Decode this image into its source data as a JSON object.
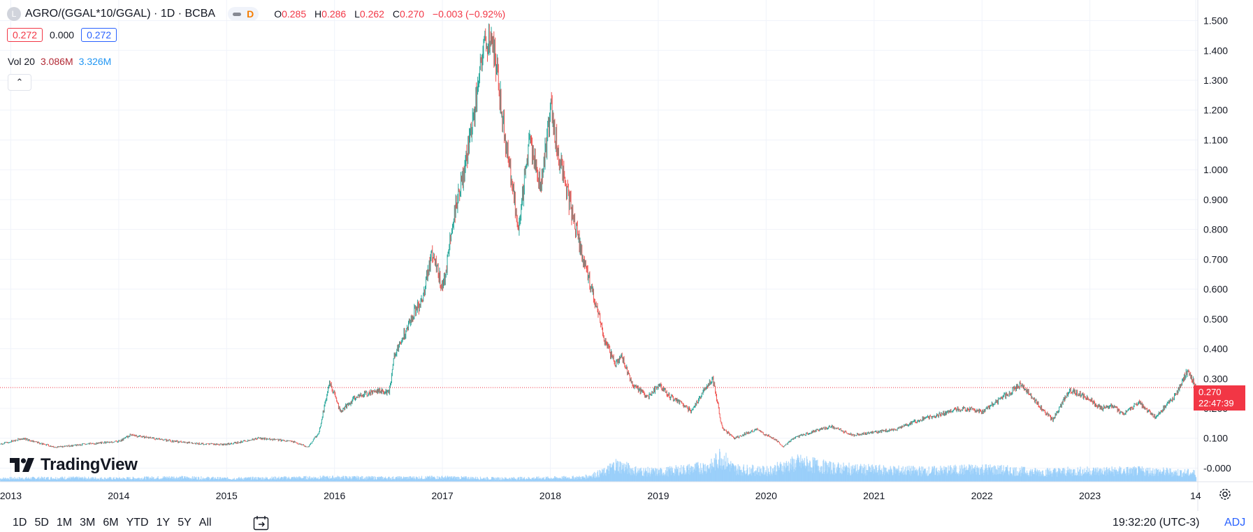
{
  "header": {
    "logo_letter": "L",
    "symbol": "AGRO/(GGAL*10/GGAL) · 1D · BCBA",
    "interval_badge": "D",
    "open_label": "O",
    "open": "0.285",
    "high_label": "H",
    "high": "0.286",
    "low_label": "L",
    "low": "0.262",
    "close_label": "C",
    "close": "0.270",
    "change": "−0.003 (−0.92%)"
  },
  "quote": {
    "sell": "0.272",
    "spread": "0.000",
    "buy": "0.272"
  },
  "volume": {
    "label": "Vol 20",
    "value_red": "3.086M",
    "value_blue": "3.326M"
  },
  "collapse_glyph": "⌃",
  "brand": "TradingView",
  "last_price": {
    "value": "0.270",
    "countdown": "22:47:39"
  },
  "timeframes": [
    "1D",
    "5D",
    "1M",
    "3M",
    "6M",
    "YTD",
    "1Y",
    "5Y",
    "All"
  ],
  "clock": "19:32:20 (UTC-3)",
  "adj": "ADJ",
  "colors": {
    "up": "#26a69a",
    "down": "#ef5350",
    "volume": "#90caf9",
    "grid": "#f0f3fa",
    "price_tag": "#f23645"
  },
  "chart_data": {
    "type": "line",
    "title": "AGRO/(GGAL*10/GGAL) · 1D · BCBA",
    "xlabel": "",
    "ylabel": "",
    "ylim": [
      -0.02,
      1.52
    ],
    "xlim": [
      2012.9,
      2024.0
    ],
    "y_ticks": [
      "1.500",
      "1.400",
      "1.300",
      "1.200",
      "1.100",
      "1.000",
      "0.900",
      "0.800",
      "0.700",
      "0.600",
      "0.500",
      "0.400",
      "0.300",
      "0.200",
      "0.100",
      "-0.000"
    ],
    "y_tick_values": [
      1.5,
      1.4,
      1.3,
      1.2,
      1.1,
      1.0,
      0.9,
      0.8,
      0.7,
      0.6,
      0.5,
      0.4,
      0.3,
      0.2,
      0.1,
      0.0
    ],
    "x_ticks": [
      "2013",
      "2014",
      "2015",
      "2016",
      "2017",
      "2018",
      "2019",
      "2020",
      "2021",
      "2022",
      "2023",
      "14"
    ],
    "x_tick_values": [
      2013,
      2014,
      2015,
      2016,
      2017,
      2018,
      2019,
      2020,
      2021,
      2022,
      2023,
      2023.98
    ],
    "last_value": 0.27,
    "series": [
      {
        "name": "AGRO/(GGAL*10/GGAL)",
        "x": [
          2012.9,
          2013.1,
          2013.4,
          2013.7,
          2014.0,
          2014.1,
          2014.5,
          2014.8,
          2015.0,
          2015.3,
          2015.6,
          2015.75,
          2015.85,
          2015.95,
          2016.05,
          2016.2,
          2016.4,
          2016.5,
          2016.55,
          2016.7,
          2016.8,
          2016.9,
          2017.0,
          2017.1,
          2017.2,
          2017.3,
          2017.35,
          2017.45,
          2017.55,
          2017.6,
          2017.7,
          2017.8,
          2017.9,
          2018.0,
          2018.1,
          2018.2,
          2018.3,
          2018.45,
          2018.5,
          2018.6,
          2018.65,
          2018.75,
          2018.9,
          2019.0,
          2019.1,
          2019.2,
          2019.3,
          2019.45,
          2019.5,
          2019.55,
          2019.57,
          2019.6,
          2019.7,
          2019.9,
          2020.1,
          2020.15,
          2020.25,
          2020.4,
          2020.6,
          2020.8,
          2021.0,
          2021.2,
          2021.4,
          2021.6,
          2021.8,
          2022.0,
          2022.2,
          2022.35,
          2022.55,
          2022.65,
          2022.8,
          2022.95,
          2023.1,
          2023.2,
          2023.3,
          2023.45,
          2023.6,
          2023.7,
          2023.8,
          2023.9,
          2023.98
        ],
        "values": [
          0.08,
          0.1,
          0.07,
          0.08,
          0.09,
          0.11,
          0.09,
          0.08,
          0.08,
          0.1,
          0.09,
          0.07,
          0.12,
          0.29,
          0.19,
          0.24,
          0.26,
          0.25,
          0.38,
          0.5,
          0.56,
          0.72,
          0.6,
          0.85,
          1.0,
          1.22,
          1.38,
          1.47,
          1.18,
          1.05,
          0.8,
          1.1,
          0.95,
          1.2,
          1.0,
          0.85,
          0.7,
          0.5,
          0.42,
          0.35,
          0.38,
          0.28,
          0.24,
          0.28,
          0.24,
          0.22,
          0.19,
          0.28,
          0.3,
          0.21,
          0.16,
          0.13,
          0.1,
          0.13,
          0.09,
          0.07,
          0.1,
          0.12,
          0.14,
          0.11,
          0.12,
          0.13,
          0.16,
          0.18,
          0.2,
          0.19,
          0.24,
          0.28,
          0.2,
          0.16,
          0.26,
          0.24,
          0.2,
          0.21,
          0.18,
          0.22,
          0.17,
          0.21,
          0.25,
          0.33,
          0.27
        ]
      }
    ],
    "volume_series": {
      "name": "Vol 20",
      "x": [
        2012.9,
        2013.5,
        2014.0,
        2014.5,
        2015.0,
        2015.5,
        2016.0,
        2016.5,
        2017.0,
        2017.5,
        2018.0,
        2018.3,
        2018.5,
        2018.6,
        2018.8,
        2019.0,
        2019.3,
        2019.5,
        2019.57,
        2019.7,
        2020.0,
        2020.3,
        2020.6,
        2021.0,
        2021.5,
        2022.0,
        2022.5,
        2023.0,
        2023.5,
        2023.98
      ],
      "values": [
        0.3,
        0.35,
        0.3,
        0.4,
        0.3,
        0.35,
        0.4,
        0.35,
        0.4,
        0.3,
        0.35,
        0.4,
        0.9,
        1.6,
        1.0,
        0.9,
        1.2,
        1.5,
        2.4,
        1.2,
        1.0,
        1.8,
        1.3,
        1.1,
        1.0,
        1.2,
        0.9,
        1.0,
        1.0,
        0.8
      ]
    }
  }
}
